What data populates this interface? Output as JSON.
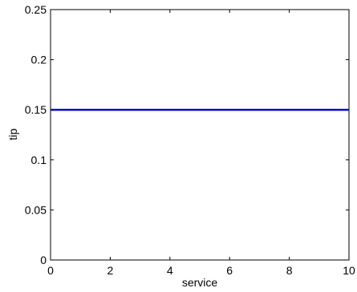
{
  "chart_data": {
    "type": "line",
    "xlabel": "service",
    "ylabel": "tip",
    "xlim": [
      0,
      10
    ],
    "ylim": [
      0,
      0.25
    ],
    "xticks": [
      {
        "value": 0,
        "label": "0"
      },
      {
        "value": 2,
        "label": "2"
      },
      {
        "value": 4,
        "label": "4"
      },
      {
        "value": 6,
        "label": "6"
      },
      {
        "value": 8,
        "label": "8"
      },
      {
        "value": 10,
        "label": "10"
      }
    ],
    "yticks": [
      {
        "value": 0,
        "label": "0"
      },
      {
        "value": 0.05,
        "label": "0.05"
      },
      {
        "value": 0.1,
        "label": "0.1"
      },
      {
        "value": 0.15,
        "label": "0.15"
      },
      {
        "value": 0.2,
        "label": "0.2"
      },
      {
        "value": 0.25,
        "label": "0.25"
      }
    ],
    "grid": false,
    "legend": "none",
    "series": [
      {
        "color": "#0000cc",
        "x": [
          0,
          10
        ],
        "y": [
          0.15,
          0.15
        ]
      }
    ]
  }
}
